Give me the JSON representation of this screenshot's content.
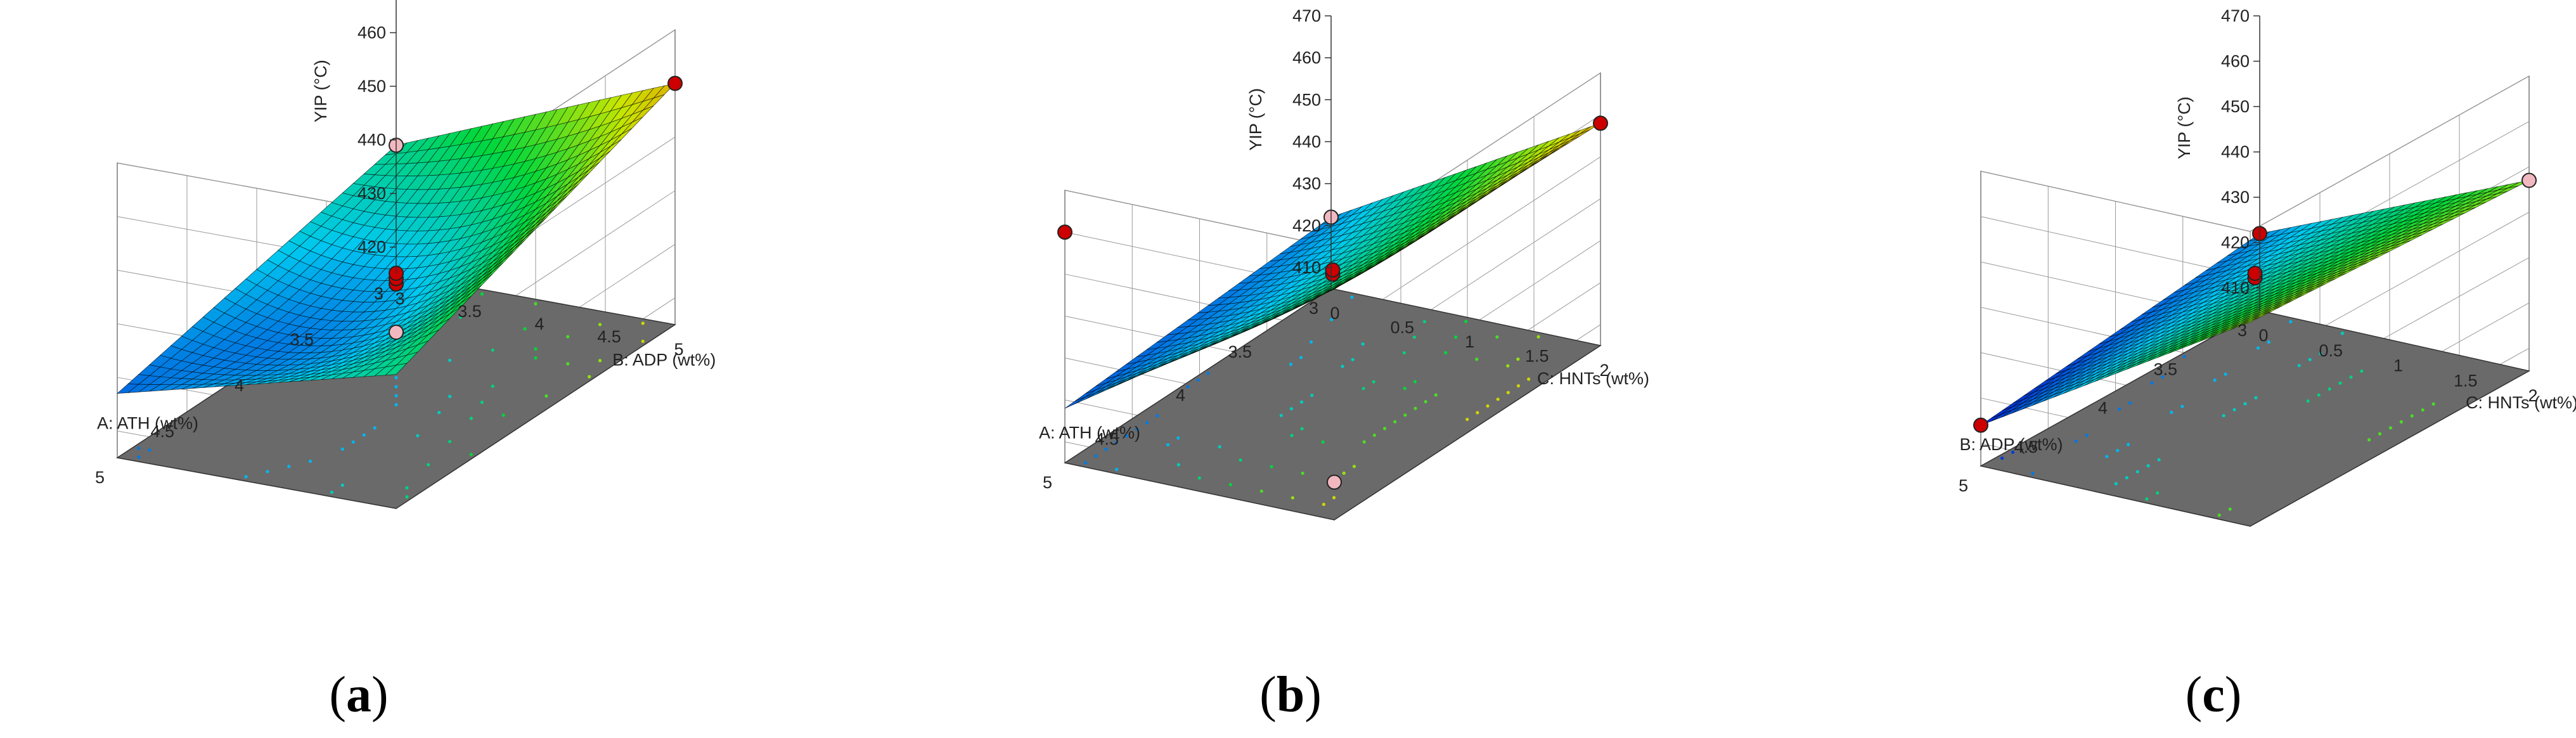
{
  "charts": [
    {
      "id": "a",
      "caption": "a",
      "type": "surface3d",
      "zlabel": "YIP (°C)",
      "xlabel": "A: ATH (wt%)",
      "ylabel": "B: ADP (wt%)",
      "x_ticks": [
        "3",
        "3.5",
        "4",
        "4.5",
        "5"
      ],
      "y_ticks": [
        "3",
        "3.5",
        "4",
        "4.5",
        "5"
      ],
      "z_ticks": [
        "420",
        "430",
        "440",
        "450",
        "460",
        "470"
      ],
      "xlim": [
        3,
        5
      ],
      "ylim": [
        3,
        5
      ],
      "zlim": [
        415,
        470
      ],
      "surface": {
        "corners": {
          "x3_y3": 439,
          "x5_y3": 427,
          "x3_y5": 460,
          "x5_y5": 440
        },
        "center_value": 432
      },
      "design_points": [
        {
          "x": 3,
          "y": 3,
          "z": 439,
          "above_surface": false
        },
        {
          "x": 3,
          "y": 5,
          "z": 460,
          "above_surface": true
        },
        {
          "x": 4,
          "y": 4,
          "z": 435,
          "above_surface": true
        },
        {
          "x": 4,
          "y": 4,
          "z": 436,
          "above_surface": true
        },
        {
          "x": 4,
          "y": 4,
          "z": 437,
          "above_surface": true
        },
        {
          "x": 4,
          "y": 4,
          "z": 426,
          "above_surface": false
        }
      ]
    },
    {
      "id": "b",
      "caption": "b",
      "type": "surface3d",
      "zlabel": "YIP (°C)",
      "xlabel": "A: ATH (wt%)",
      "ylabel": "C: HNTs (wt%)",
      "x_ticks": [
        "3",
        "3.5",
        "4",
        "4.5",
        "5"
      ],
      "y_ticks": [
        "0",
        "0.5",
        "1",
        "1.5",
        "2"
      ],
      "z_ticks": [
        "410",
        "420",
        "430",
        "440",
        "450",
        "460",
        "470"
      ],
      "xlim": [
        3,
        5
      ],
      "ylim": [
        0,
        2
      ],
      "zlim": [
        405,
        470
      ],
      "surface": {
        "corners": {
          "x3_y0": 422,
          "x5_y0": 418,
          "x3_y2": 458,
          "x5_y2": 460
        },
        "center_value": 434
      },
      "design_points": [
        {
          "x": 3,
          "y": 0,
          "z": 422,
          "above_surface": false
        },
        {
          "x": 3,
          "y": 2,
          "z": 458,
          "above_surface": true
        },
        {
          "x": 5,
          "y": 0,
          "z": 460,
          "above_surface": true
        },
        {
          "x": 4,
          "y": 1,
          "z": 436,
          "above_surface": true
        },
        {
          "x": 4,
          "y": 1,
          "z": 437,
          "above_surface": true
        },
        {
          "x": 5,
          "y": 2,
          "z": 414,
          "above_surface": false
        }
      ]
    },
    {
      "id": "c",
      "caption": "c",
      "type": "surface3d",
      "zlabel": "YIP (°C)",
      "xlabel": "B: ADP (wt%)",
      "ylabel": "C: HNTs (wt%)",
      "x_ticks": [
        "3",
        "3.5",
        "4",
        "4.5",
        "5"
      ],
      "y_ticks": [
        "0",
        "0.5",
        "1",
        "1.5",
        "2"
      ],
      "z_ticks": [
        "410",
        "420",
        "430",
        "440",
        "450",
        "460",
        "470"
      ],
      "xlim": [
        3,
        5
      ],
      "ylim": [
        0,
        2
      ],
      "zlim": [
        405,
        470
      ],
      "surface": {
        "corners": {
          "x3_y0": 422,
          "x5_y0": 414,
          "x3_y2": 447,
          "x5_y2": 450
        },
        "center_value": 433
      },
      "design_points": [
        {
          "x": 3,
          "y": 0,
          "z": 422,
          "above_surface": true
        },
        {
          "x": 3,
          "y": 2,
          "z": 447,
          "above_surface": false
        },
        {
          "x": 4,
          "y": 1,
          "z": 436,
          "above_surface": true
        },
        {
          "x": 4,
          "y": 1,
          "z": 437,
          "above_surface": true
        },
        {
          "x": 5,
          "y": 0,
          "z": 414,
          "above_surface": true
        }
      ]
    }
  ],
  "colors": {
    "floor": "#6a6a6a",
    "point_red": "#cc0000",
    "point_pink": "#f2b8c0",
    "wire": "#000000"
  }
}
